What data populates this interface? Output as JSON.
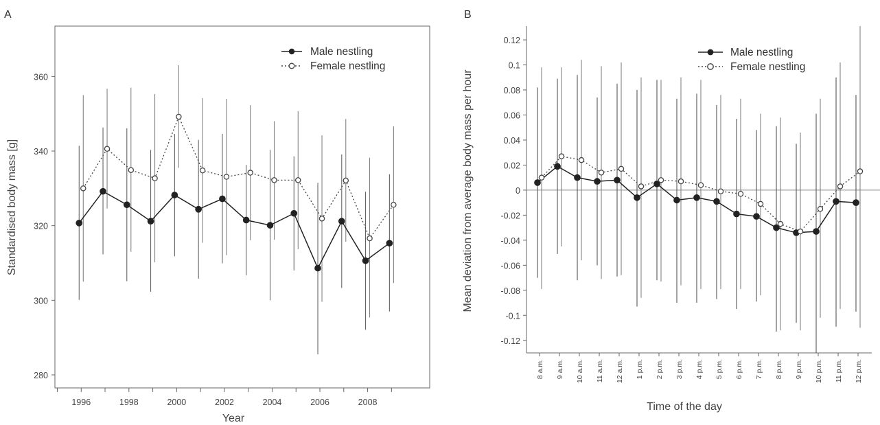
{
  "panels": {
    "a": "A",
    "b": "B"
  },
  "chart_data": [
    {
      "type": "line",
      "xlabel": "Year",
      "ylabel": "Standardised body mass [g]",
      "xlim": [
        1994.9,
        2010.6
      ],
      "ylim": [
        276.5,
        373.5
      ],
      "x_ticks": [
        1996,
        1998,
        2000,
        2002,
        2004,
        2006,
        2008
      ],
      "y_ticks": [
        280,
        300,
        320,
        340,
        360
      ],
      "legend_position": "top-right",
      "x": [
        1996,
        1997,
        1998,
        1999,
        2000,
        2001,
        2002,
        2003,
        2004,
        2005,
        2006,
        2007,
        2008,
        2009
      ],
      "series": [
        {
          "name": "Male nestling",
          "style": "solid-filled",
          "values": [
            320.7,
            329.2,
            325.6,
            321.2,
            328.2,
            324.4,
            327.2,
            321.5,
            320.1,
            323.3,
            308.6,
            321.2,
            310.6,
            315.3
          ],
          "lower": [
            300.1,
            312.3,
            305.1,
            302.3,
            311.8,
            305.8,
            309.9,
            306.7,
            300.0,
            308.0,
            285.5,
            303.3,
            292.1,
            297.0
          ],
          "upper": [
            341.4,
            346.3,
            346.1,
            340.3,
            344.6,
            343.0,
            344.6,
            336.3,
            340.3,
            338.6,
            331.5,
            339.1,
            329.1,
            333.8
          ]
        },
        {
          "name": "Female nestling",
          "style": "dotted-open",
          "values": [
            330.0,
            340.6,
            334.9,
            332.7,
            349.2,
            334.8,
            333.1,
            334.2,
            332.2,
            332.2,
            321.9,
            332.1,
            316.6,
            325.6
          ],
          "lower": [
            305.0,
            324.6,
            313.0,
            310.2,
            335.5,
            315.4,
            312.1,
            316.1,
            316.2,
            313.7,
            299.6,
            315.7,
            295.4,
            304.6
          ],
          "upper": [
            355.0,
            356.7,
            357.0,
            355.3,
            363.0,
            354.2,
            354.0,
            352.3,
            348.0,
            350.7,
            344.2,
            348.6,
            338.2,
            346.6
          ]
        }
      ]
    },
    {
      "type": "line",
      "xlabel": "Time of the day",
      "ylabel": "Mean deviation from average body mass per hour",
      "ylim": [
        -0.13,
        0.131
      ],
      "categories": [
        "8 a.m.",
        "9 a.m.",
        "10 a.m.",
        "11 a.m.",
        "12 a.m.",
        "1 p.m.",
        "2 p.m.",
        "3 p.m.",
        "4 p.m.",
        "5 p.m.",
        "6 p.m.",
        "7 p.m.",
        "8 p.m.",
        "9 p.m.",
        "10 p.m.",
        "11 p.m.",
        "12 p.m."
      ],
      "y_ticks": [
        0.12,
        0.1,
        0.08,
        0.06,
        0.04,
        0.02,
        0,
        -0.02,
        -0.04,
        -0.06,
        -0.08,
        -0.1,
        -0.12
      ],
      "y_tick_labels": [
        "0.12",
        "0.1",
        "0.08",
        "0.06",
        "0.04",
        "0.02",
        "0",
        "-0.02",
        "-0.04",
        "-0.06",
        "-0.08",
        "-0.1",
        "-0.12"
      ],
      "reference_line": 0,
      "legend_position": "top-right",
      "series": [
        {
          "name": "Male nestling",
          "style": "solid-filled",
          "values": [
            0.006,
            0.019,
            0.01,
            0.007,
            0.008,
            -0.006,
            0.005,
            -0.008,
            -0.006,
            -0.009,
            -0.019,
            -0.021,
            -0.03,
            -0.034,
            -0.033,
            -0.009,
            -0.01
          ],
          "lower": [
            -0.07,
            -0.051,
            -0.072,
            -0.06,
            -0.069,
            -0.093,
            -0.072,
            -0.09,
            -0.09,
            -0.087,
            -0.095,
            -0.089,
            -0.113,
            -0.106,
            -0.13,
            -0.109,
            -0.097
          ],
          "upper": [
            0.082,
            0.089,
            0.092,
            0.074,
            0.085,
            0.08,
            0.088,
            0.073,
            0.077,
            0.068,
            0.057,
            0.048,
            0.051,
            0.037,
            0.061,
            0.09,
            0.076
          ]
        },
        {
          "name": "Female nestling",
          "style": "dotted-open",
          "values": [
            0.01,
            0.027,
            0.024,
            0.014,
            0.017,
            0.003,
            0.008,
            0.007,
            0.004,
            -0.001,
            -0.003,
            -0.011,
            -0.027,
            -0.033,
            -0.015,
            0.003,
            0.015
          ],
          "lower": [
            -0.079,
            -0.045,
            -0.056,
            -0.071,
            -0.068,
            -0.086,
            -0.073,
            -0.076,
            -0.079,
            -0.079,
            -0.079,
            -0.084,
            -0.112,
            -0.112,
            -0.102,
            -0.095,
            -0.11
          ],
          "upper": [
            0.098,
            0.098,
            0.104,
            0.099,
            0.102,
            0.09,
            0.088,
            0.09,
            0.088,
            0.076,
            0.073,
            0.061,
            0.058,
            0.046,
            0.073,
            0.102,
            0.131
          ]
        }
      ]
    }
  ]
}
